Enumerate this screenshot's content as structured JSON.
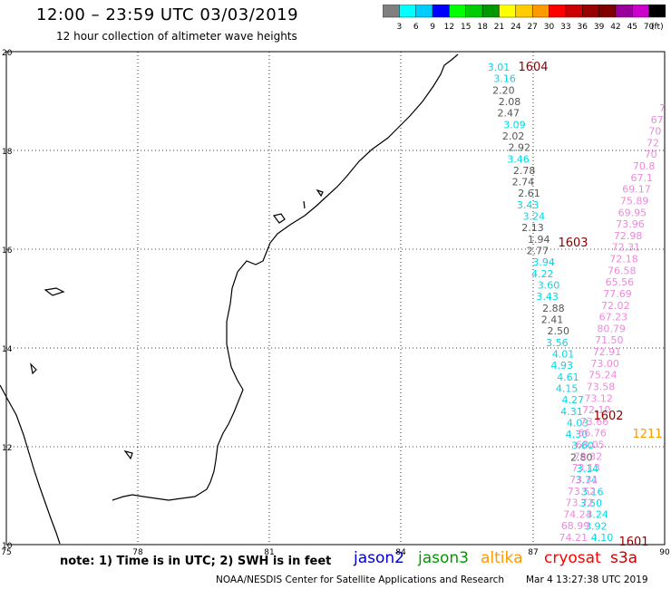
{
  "header": {
    "title": "12:00 – 23:59 UTC 03/03/2019",
    "subtitle": "12 hour collection of altimeter wave heights"
  },
  "colorbar": {
    "labels": [
      "3",
      "6",
      "9",
      "12",
      "15",
      "18",
      "21",
      "24",
      "27",
      "30",
      "33",
      "36",
      "39",
      "42",
      "45",
      "70",
      "(ft)"
    ],
    "colors": [
      "#808080",
      "#00ffff",
      "#00ccff",
      "#0000ff",
      "#00ff00",
      "#00cc00",
      "#009900",
      "#ffff00",
      "#ffcc00",
      "#ff9900",
      "#ff0000",
      "#cc0000",
      "#990000",
      "#800000",
      "#990099",
      "#cc00cc",
      "#000000"
    ]
  },
  "axes": {
    "x_ticks": [
      "75",
      "78",
      "81",
      "84",
      "87",
      "90"
    ],
    "y_ticks": [
      "20",
      "18",
      "16",
      "14",
      "12",
      "10"
    ]
  },
  "tracks": {
    "cyan_color": "#00d8e8",
    "gray_color": "#555555",
    "pink_color": "#ee88dd",
    "track1": [
      {
        "v": "3.01",
        "c": "cyan"
      },
      {
        "v": "3.16",
        "c": "cyan"
      },
      {
        "v": "2.20",
        "c": "gray"
      },
      {
        "v": "2.08",
        "c": "gray"
      },
      {
        "v": "2.47",
        "c": "gray"
      },
      {
        "v": "3.09",
        "c": "cyan"
      },
      {
        "v": "2.02",
        "c": "gray"
      },
      {
        "v": "2.92",
        "c": "gray"
      },
      {
        "v": "3.46",
        "c": "cyan"
      },
      {
        "v": "2.78",
        "c": "gray"
      },
      {
        "v": "2.74",
        "c": "gray"
      },
      {
        "v": "2.61",
        "c": "gray"
      },
      {
        "v": "3.43",
        "c": "cyan"
      },
      {
        "v": "3.24",
        "c": "cyan"
      },
      {
        "v": "2.13",
        "c": "gray"
      },
      {
        "v": "1.94",
        "c": "gray"
      },
      {
        "v": "2.77",
        "c": "gray"
      },
      {
        "v": "3.94",
        "c": "cyan"
      },
      {
        "v": "4.22",
        "c": "cyan"
      },
      {
        "v": "3.60",
        "c": "cyan"
      },
      {
        "v": "3.43",
        "c": "cyan"
      },
      {
        "v": "2.88",
        "c": "gray"
      },
      {
        "v": "2.41",
        "c": "gray"
      },
      {
        "v": "2.50",
        "c": "gray"
      },
      {
        "v": "3.56",
        "c": "cyan"
      },
      {
        "v": "4.01",
        "c": "cyan"
      },
      {
        "v": "4.93",
        "c": "cyan"
      },
      {
        "v": "4.61",
        "c": "cyan"
      },
      {
        "v": "4.15",
        "c": "cyan"
      },
      {
        "v": "4.27",
        "c": "cyan"
      },
      {
        "v": "4.31",
        "c": "cyan"
      },
      {
        "v": "4.03",
        "c": "cyan"
      },
      {
        "v": "4.30",
        "c": "cyan"
      },
      {
        "v": "3.60",
        "c": "cyan"
      },
      {
        "v": "2.80",
        "c": "gray"
      },
      {
        "v": "3.14",
        "c": "cyan"
      },
      {
        "v": "3.74",
        "c": "cyan"
      },
      {
        "v": "3.16",
        "c": "cyan"
      },
      {
        "v": "3.50",
        "c": "cyan"
      },
      {
        "v": "3.24",
        "c": "cyan"
      },
      {
        "v": "3.92",
        "c": "cyan"
      },
      {
        "v": "4.10",
        "c": "cyan"
      }
    ],
    "track2": [
      "7",
      "67",
      "70",
      "72",
      "70",
      "70.8",
      "67.1",
      "69.17",
      "75.89",
      "69.95",
      "73.96",
      "72.98",
      "72.31",
      "72.18",
      "76.58",
      "65.56",
      "77.69",
      "72.02",
      "67.23",
      "80.79",
      "71.50",
      "72.91",
      "73.00",
      "75.24",
      "73.58",
      "73.12",
      "72.10",
      "73.66",
      "66.76",
      "68.05",
      "73.32",
      "73.13",
      "73.31",
      "73.52",
      "73.72",
      "74.24",
      "68.99",
      "74.21"
    ],
    "markers": [
      {
        "label": "1604",
        "color": "#880000"
      },
      {
        "label": "1603",
        "color": "#880000"
      },
      {
        "label": "1602",
        "color": "#880000"
      },
      {
        "label": "1211",
        "color": "#ff9900"
      },
      {
        "label": "1601",
        "color": "#880000"
      }
    ]
  },
  "footer": {
    "note": "note: 1) Time is in UTC; 2) SWH is in feet",
    "satellites": {
      "jason2": "jason2",
      "jason3": "jason3",
      "altika": "altika",
      "cryosat": "cryosat",
      "s3a": "s3a"
    },
    "credit": "NOAA/NESDIS Center for Satellite Applications and Research",
    "timestamp": "Mar  4 13:27:38 UTC 2019"
  }
}
